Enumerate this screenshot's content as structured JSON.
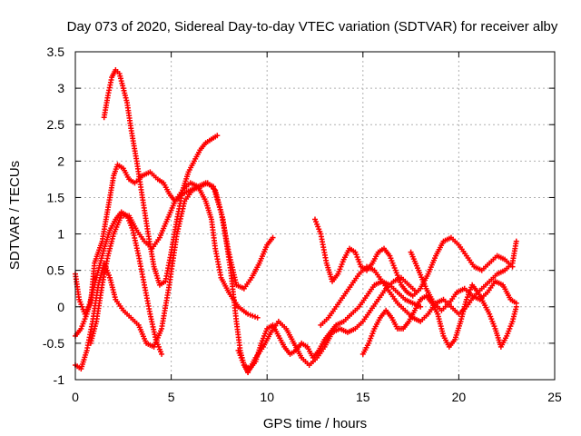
{
  "chart_data": {
    "type": "scatter",
    "title": "Day 073 of 2020, Sidereal Day-to-day VTEC variation (SDTVAR) for receiver alby",
    "xlabel": "GPS time / hours",
    "ylabel": "SDTVAR / TECUs",
    "xlim": [
      0,
      25
    ],
    "ylim": [
      -1,
      3.5
    ],
    "xticks": [
      "0",
      "5",
      "10",
      "15",
      "20",
      "25"
    ],
    "yticks": [
      "-1",
      "-0.5",
      "0",
      "0.5",
      "1",
      "1.5",
      "2",
      "2.5",
      "3",
      "3.5"
    ],
    "grid": true,
    "marker": "plus",
    "color": "#ff0000",
    "series": [
      {
        "x": [
          0.0,
          0.2,
          0.5,
          0.8,
          1.0,
          1.2,
          1.4,
          1.6,
          1.8,
          2.0,
          2.2,
          2.5,
          2.8,
          3.1,
          3.5,
          3.9,
          4.3,
          4.6,
          4.9,
          5.2,
          5.6,
          6.0,
          6.4,
          6.8,
          7.1,
          7.3,
          7.6,
          8.0,
          8.5,
          9.0,
          9.5
        ],
        "y": [
          0.45,
          0.1,
          -0.1,
          0.05,
          0.6,
          0.75,
          0.9,
          1.2,
          1.5,
          1.8,
          1.95,
          1.9,
          1.75,
          1.7,
          1.8,
          1.85,
          1.75,
          1.7,
          1.55,
          1.45,
          1.6,
          1.7,
          1.65,
          1.45,
          1.2,
          0.8,
          0.4,
          0.2,
          0.0,
          -0.1,
          -0.15
        ]
      },
      {
        "x": [
          1.5,
          1.7,
          1.9,
          2.1,
          2.3,
          2.5,
          2.7,
          2.9,
          3.2,
          3.5,
          3.8,
          4.1,
          4.4,
          4.7,
          5.0,
          5.3,
          5.6,
          5.9,
          6.2,
          6.5,
          6.8,
          7.1,
          7.4
        ],
        "y": [
          2.6,
          2.9,
          3.15,
          3.25,
          3.2,
          3.0,
          2.8,
          2.45,
          2.0,
          1.5,
          1.0,
          0.55,
          0.3,
          0.35,
          0.75,
          1.2,
          1.6,
          1.85,
          2.0,
          2.15,
          2.25,
          2.3,
          2.35
        ]
      },
      {
        "x": [
          0.0,
          0.3,
          0.6,
          0.9,
          1.2,
          1.5,
          1.8,
          2.1,
          2.4,
          2.7,
          3.0,
          3.3,
          3.6,
          3.9,
          4.2,
          4.5
        ],
        "y": [
          -0.4,
          -0.3,
          -0.1,
          0.2,
          0.5,
          0.8,
          1.05,
          1.2,
          1.3,
          1.25,
          1.05,
          0.7,
          0.3,
          -0.1,
          -0.45,
          -0.65
        ]
      },
      {
        "x": [
          0.0,
          0.3,
          0.6,
          0.9,
          1.2,
          1.5,
          1.8,
          2.1,
          2.5,
          2.9,
          3.3,
          3.7,
          4.1,
          4.5,
          4.9,
          5.3,
          5.7,
          6.1,
          6.5,
          6.9,
          7.3,
          7.7,
          8.1,
          8.4,
          8.6,
          8.8,
          9.0
        ],
        "y": [
          -0.8,
          -0.85,
          -0.6,
          -0.2,
          0.3,
          0.6,
          0.4,
          0.1,
          -0.05,
          -0.15,
          -0.25,
          -0.5,
          -0.55,
          -0.3,
          0.3,
          1.0,
          1.45,
          1.6,
          1.65,
          1.7,
          1.6,
          1.2,
          0.5,
          -0.2,
          -0.6,
          -0.8,
          -0.9
        ]
      },
      {
        "x": [
          0.8,
          1.1,
          1.4,
          1.7,
          2.0,
          2.4,
          2.8,
          3.2,
          3.6,
          4.0,
          4.4,
          4.8,
          5.2,
          5.6,
          6.0,
          6.4,
          6.8,
          7.2,
          7.6,
          8.0,
          8.4,
          8.8,
          9.2,
          9.6,
          10.0,
          10.3
        ],
        "y": [
          -0.5,
          -0.2,
          0.3,
          0.7,
          1.0,
          1.25,
          1.25,
          1.05,
          0.9,
          0.8,
          0.95,
          1.2,
          1.45,
          1.55,
          1.6,
          1.65,
          1.7,
          1.65,
          1.3,
          0.75,
          0.3,
          0.25,
          0.4,
          0.6,
          0.85,
          0.95
        ]
      },
      {
        "x": [
          8.5,
          8.8,
          9.1,
          9.4,
          9.7,
          10.0,
          10.3,
          10.6,
          10.9,
          11.2,
          11.5,
          11.8,
          12.1,
          12.4,
          12.7,
          13.0,
          13.3,
          13.6,
          14.0,
          14.4,
          14.8,
          15.2,
          15.6,
          16.0,
          16.4,
          16.8,
          17.2,
          17.6,
          18.0
        ],
        "y": [
          -0.6,
          -0.8,
          -0.85,
          -0.75,
          -0.5,
          -0.3,
          -0.25,
          -0.4,
          -0.55,
          -0.65,
          -0.6,
          -0.5,
          -0.55,
          -0.7,
          -0.6,
          -0.45,
          -0.35,
          -0.25,
          -0.2,
          -0.1,
          0.0,
          0.15,
          0.3,
          0.35,
          0.3,
          0.2,
          0.1,
          0.05,
          0.0
        ]
      },
      {
        "x": [
          9.0,
          9.4,
          9.8,
          10.2,
          10.6,
          11.0,
          11.4,
          11.8,
          12.2,
          12.6,
          13.0,
          13.4,
          13.8,
          14.2,
          14.6,
          15.0,
          15.4,
          15.8,
          16.2,
          16.6,
          17.0,
          17.4,
          17.8
        ],
        "y": [
          -0.9,
          -0.7,
          -0.55,
          -0.35,
          -0.2,
          -0.3,
          -0.5,
          -0.7,
          -0.8,
          -0.7,
          -0.55,
          -0.35,
          -0.3,
          -0.35,
          -0.3,
          -0.2,
          -0.05,
          0.1,
          0.25,
          0.35,
          0.4,
          0.3,
          0.2
        ]
      },
      {
        "x": [
          12.5,
          12.8,
          13.1,
          13.4,
          13.7,
          14.0,
          14.3,
          14.6,
          14.9,
          15.2,
          15.5,
          15.8,
          16.1,
          16.4,
          16.7,
          17.0,
          17.3,
          17.6,
          18.0,
          18.4,
          18.8,
          19.2,
          19.6,
          20.0,
          20.4,
          20.8,
          21.2,
          21.6,
          22.0,
          22.4,
          22.8
        ],
        "y": [
          1.2,
          1.0,
          0.6,
          0.35,
          0.45,
          0.65,
          0.8,
          0.75,
          0.55,
          0.5,
          0.6,
          0.75,
          0.8,
          0.7,
          0.5,
          0.3,
          0.2,
          0.15,
          0.25,
          0.45,
          0.7,
          0.9,
          0.95,
          0.85,
          0.7,
          0.55,
          0.5,
          0.6,
          0.7,
          0.65,
          0.55
        ]
      },
      {
        "x": [
          12.8,
          13.2,
          13.6,
          14.0,
          14.4,
          14.8,
          15.2,
          15.6,
          16.0,
          16.4,
          16.8,
          17.2,
          17.6,
          18.0,
          18.4,
          18.8,
          19.2,
          19.6,
          20.0,
          20.4,
          20.8,
          21.2,
          21.6,
          22.0,
          22.4,
          22.8,
          23.0
        ],
        "y": [
          -0.25,
          -0.15,
          0.0,
          0.15,
          0.3,
          0.45,
          0.55,
          0.5,
          0.35,
          0.2,
          0.05,
          -0.05,
          -0.15,
          -0.2,
          -0.1,
          0.05,
          0.1,
          0.0,
          -0.1,
          0.0,
          0.15,
          0.25,
          0.35,
          0.45,
          0.5,
          0.6,
          0.9
        ]
      },
      {
        "x": [
          15.0,
          15.3,
          15.6,
          15.9,
          16.2,
          16.5,
          16.8,
          17.1,
          17.4,
          17.7,
          18.0,
          18.3,
          18.6,
          18.9,
          19.2,
          19.5,
          19.8,
          20.1,
          20.4,
          20.7,
          21.0,
          21.3,
          21.6,
          21.9,
          22.2,
          22.5,
          22.8,
          23.0
        ],
        "y": [
          -0.65,
          -0.5,
          -0.3,
          -0.15,
          -0.05,
          -0.15,
          -0.3,
          -0.3,
          -0.2,
          -0.05,
          0.1,
          0.15,
          0.05,
          -0.1,
          -0.4,
          -0.55,
          -0.45,
          -0.2,
          0.1,
          0.3,
          0.2,
          0.05,
          -0.1,
          -0.3,
          -0.55,
          -0.4,
          -0.2,
          0.0
        ]
      },
      {
        "x": [
          17.5,
          17.9,
          18.3,
          18.7,
          19.1,
          19.5,
          19.9,
          20.3,
          20.7,
          21.1,
          21.5,
          21.9,
          22.3,
          22.7,
          23.0
        ],
        "y": [
          0.75,
          0.5,
          0.25,
          0.05,
          -0.05,
          0.05,
          0.2,
          0.25,
          0.15,
          0.1,
          0.2,
          0.35,
          0.3,
          0.1,
          0.05
        ]
      }
    ]
  }
}
